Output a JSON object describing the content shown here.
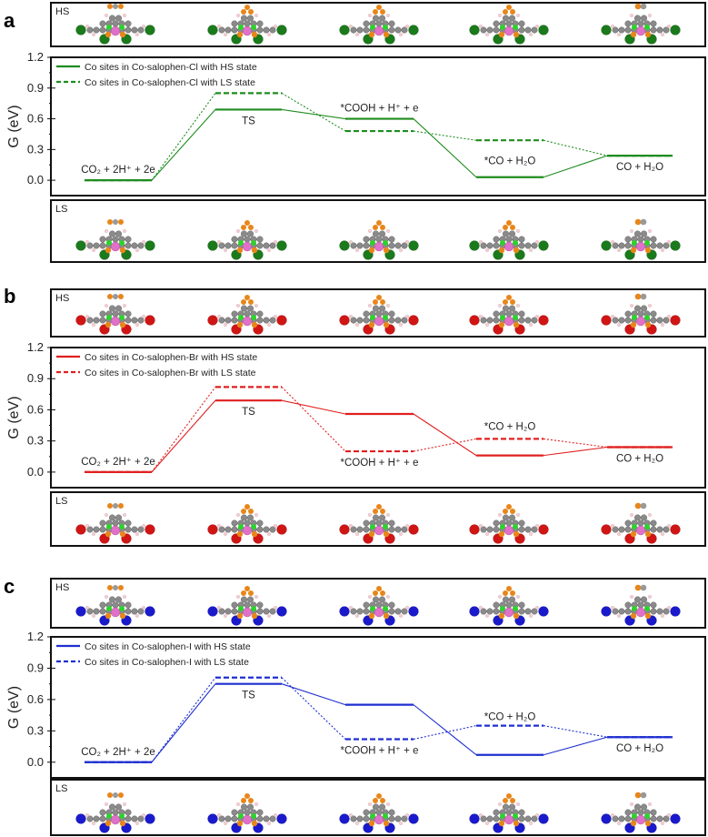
{
  "chart_data": [
    {
      "panel": "a",
      "type": "line",
      "title": "",
      "ylabel": "G (eV)",
      "xlabel": "",
      "ylim": [
        -0.15,
        1.2
      ],
      "yticks": [
        "0.0",
        "0.3",
        "0.6",
        "0.9",
        "1.2"
      ],
      "ytick_values": [
        0,
        0.3,
        0.6,
        0.9,
        1.2
      ],
      "color": "#1e8c1e",
      "halogen_color": "#1b7a1b",
      "top_inset_label": "HS",
      "bottom_inset_label": "LS",
      "states": [
        "CO₂ + 2H⁺ + 2e",
        "TS",
        "*COOH + H⁺ + e",
        "*CO + H₂O",
        "CO + H₂O"
      ],
      "series": [
        {
          "name": "Co sites in Co-salophen-Cl with HS state",
          "style": "solid",
          "values": [
            0,
            0.69,
            0.6,
            0.03,
            0.24
          ]
        },
        {
          "name": "Co sites in Co-salophen-Cl with LS state",
          "style": "dashed",
          "values": [
            0,
            0.85,
            0.48,
            0.39,
            0.24
          ]
        }
      ]
    },
    {
      "panel": "b",
      "type": "line",
      "title": "",
      "ylabel": "G (eV)",
      "xlabel": "",
      "ylim": [
        -0.15,
        1.2
      ],
      "yticks": [
        "0.0",
        "0.3",
        "0.6",
        "0.9",
        "1.2"
      ],
      "ytick_values": [
        0,
        0.3,
        0.6,
        0.9,
        1.2
      ],
      "color": "#e02020",
      "halogen_color": "#d01515",
      "top_inset_label": "HS",
      "bottom_inset_label": "LS",
      "states": [
        "CO₂ + 2H⁺ + 2e",
        "TS",
        "*COOH + H⁺ + e",
        "*CO + H₂O",
        "CO + H₂O"
      ],
      "series": [
        {
          "name": "Co sites in Co-salophen-Br with HS state",
          "style": "solid",
          "values": [
            0,
            0.69,
            0.56,
            0.16,
            0.24
          ]
        },
        {
          "name": "Co sites in Co-salophen-Br with LS state",
          "style": "dashed",
          "values": [
            0,
            0.82,
            0.2,
            0.32,
            0.24
          ]
        }
      ]
    },
    {
      "panel": "c",
      "type": "line",
      "title": "",
      "ylabel": "G (eV)",
      "xlabel": "",
      "ylim": [
        -0.15,
        1.2
      ],
      "yticks": [
        "0.0",
        "0.3",
        "0.6",
        "0.9",
        "1.2"
      ],
      "ytick_values": [
        0,
        0.3,
        0.6,
        0.9,
        1.2
      ],
      "color": "#1f2fd0",
      "halogen_color": "#1a1acc",
      "top_inset_label": "HS",
      "bottom_inset_label": "LS",
      "states": [
        "CO₂ + 2H⁺ + 2e",
        "TS",
        "*COOH + H⁺ + e",
        "*CO + H₂O",
        "CO + H₂O"
      ],
      "series": [
        {
          "name": "Co sites in Co-salophen-I with HS state",
          "style": "solid",
          "values": [
            0,
            0.75,
            0.55,
            0.07,
            0.24
          ]
        },
        {
          "name": "Co sites in Co-salophen-I with LS state",
          "style": "dashed",
          "values": [
            0,
            0.81,
            0.22,
            0.35,
            0.24
          ]
        }
      ]
    }
  ]
}
